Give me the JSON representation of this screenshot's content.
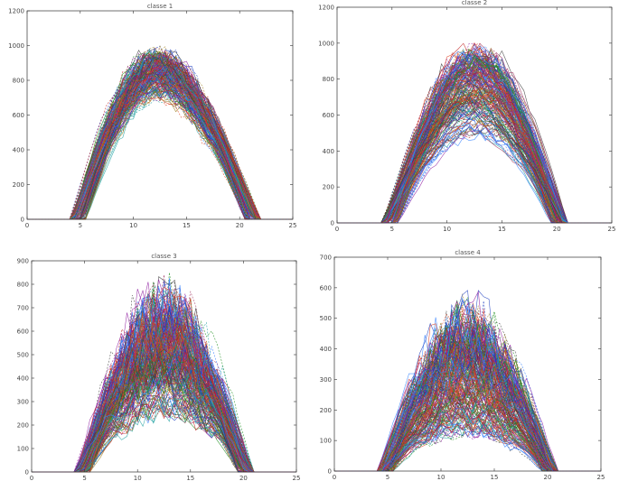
{
  "chart_data": [
    {
      "type": "line",
      "title": "classe 1",
      "xlabel": "",
      "ylabel": "",
      "xlim": [
        0,
        25
      ],
      "ylim": [
        0,
        1200
      ],
      "xticks": [
        "0",
        "5",
        "10",
        "15",
        "20",
        "25"
      ],
      "yticks": [
        "0",
        "200",
        "400",
        "600",
        "800",
        "1000",
        "1200"
      ],
      "series_count": 220,
      "profile": {
        "start": 4,
        "end": 22,
        "peak_hour": 12.2,
        "peak_min": 750,
        "peak_max": 1010
      },
      "grid": false
    },
    {
      "type": "line",
      "title": "classe 2",
      "xlabel": "",
      "ylabel": "",
      "xlim": [
        0,
        25
      ],
      "ylim": [
        0,
        1200
      ],
      "xticks": [
        "0",
        "5",
        "10",
        "15",
        "20",
        "25"
      ],
      "yticks": [
        "0",
        "200",
        "400",
        "600",
        "800",
        "1000",
        "1200"
      ],
      "series_count": 220,
      "profile": {
        "start": 4,
        "end": 21,
        "peak_hour": 12.6,
        "peak_min": 500,
        "peak_max": 1020
      },
      "grid": false
    },
    {
      "type": "line",
      "title": "classe 3",
      "xlabel": "",
      "ylabel": "",
      "xlim": [
        0,
        25
      ],
      "ylim": [
        0,
        900
      ],
      "xticks": [
        "0",
        "5",
        "10",
        "15",
        "20",
        "25"
      ],
      "yticks": [
        "0",
        "100",
        "200",
        "300",
        "400",
        "500",
        "600",
        "700",
        "800",
        "900"
      ],
      "series_count": 240,
      "profile": {
        "start": 4,
        "end": 21,
        "peak_hour": 12.4,
        "peak_min": 300,
        "peak_max": 860
      },
      "grid": false
    },
    {
      "type": "line",
      "title": "classe 4",
      "xlabel": "",
      "ylabel": "",
      "xlim": [
        0,
        25
      ],
      "ylim": [
        0,
        700
      ],
      "xticks": [
        "0",
        "5",
        "10",
        "15",
        "20",
        "25"
      ],
      "yticks": [
        "0",
        "100",
        "200",
        "300",
        "400",
        "500",
        "600",
        "700"
      ],
      "series_count": 240,
      "profile": {
        "start": 4,
        "end": 21,
        "peak_hour": 12.3,
        "peak_min": 120,
        "peak_max": 610
      },
      "grid": false
    }
  ],
  "colors": [
    "#1f3fbf",
    "#c01f1f",
    "#1f8f1f",
    "#8f1fa0",
    "#1fa0a0",
    "#a0801f",
    "#3f3f3f",
    "#e0401f",
    "#2f7fff",
    "#9f2f5f"
  ]
}
